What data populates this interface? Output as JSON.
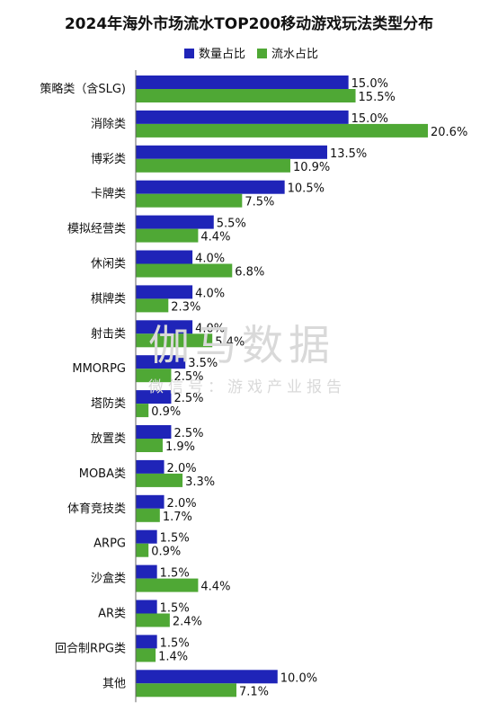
{
  "chart_data": {
    "type": "bar",
    "orientation": "horizontal",
    "title": "2024年海外市场流水TOP200移动游戏玩法类型分布",
    "categories": [
      "策略类（含SLG)",
      "消除类",
      "博彩类",
      "卡牌类",
      "模拟经营类",
      "休闲类",
      "棋牌类",
      "射击类",
      "MMORPG",
      "塔防类",
      "放置类",
      "MOBA类",
      "体育竞技类",
      "ARPG",
      "沙盒类",
      "AR类",
      "回合制RPG类",
      "其他"
    ],
    "series": [
      {
        "name": "数量占比",
        "color": "#1f24b8",
        "values": [
          15.0,
          15.0,
          13.5,
          10.5,
          5.5,
          4.0,
          4.0,
          4.0,
          3.5,
          2.5,
          2.5,
          2.0,
          2.0,
          1.5,
          1.5,
          1.5,
          1.5,
          10.0
        ],
        "labels": [
          "15.0%",
          "15.0%",
          "13.5%",
          "10.5%",
          "5.5%",
          "4.0%",
          "4.0%",
          "4.0%",
          "3.5%",
          "2.5%",
          "2.5%",
          "2.0%",
          "2.0%",
          "1.5%",
          "1.5%",
          "1.5%",
          "1.5%",
          "10.0%"
        ]
      },
      {
        "name": "流水占比",
        "color": "#4fa835",
        "values": [
          15.5,
          20.6,
          10.9,
          7.5,
          4.4,
          6.8,
          2.3,
          5.4,
          2.5,
          0.9,
          1.9,
          3.3,
          1.7,
          0.9,
          4.4,
          2.4,
          1.4,
          7.1
        ],
        "labels": [
          "15.5%",
          "20.6%",
          "10.9%",
          "7.5%",
          "4.4%",
          "6.8%",
          "2.3%",
          "5.4%",
          "2.5%",
          "0.9%",
          "1.9%",
          "3.3%",
          "1.7%",
          "0.9%",
          "4.4%",
          "2.4%",
          "1.4%",
          "7.1%"
        ]
      }
    ],
    "xlim": [
      0,
      20.6
    ],
    "grid": false,
    "legend_position": "top"
  },
  "watermark": {
    "main": "伽马数据",
    "sub": "微信号：游戏产业报告"
  }
}
